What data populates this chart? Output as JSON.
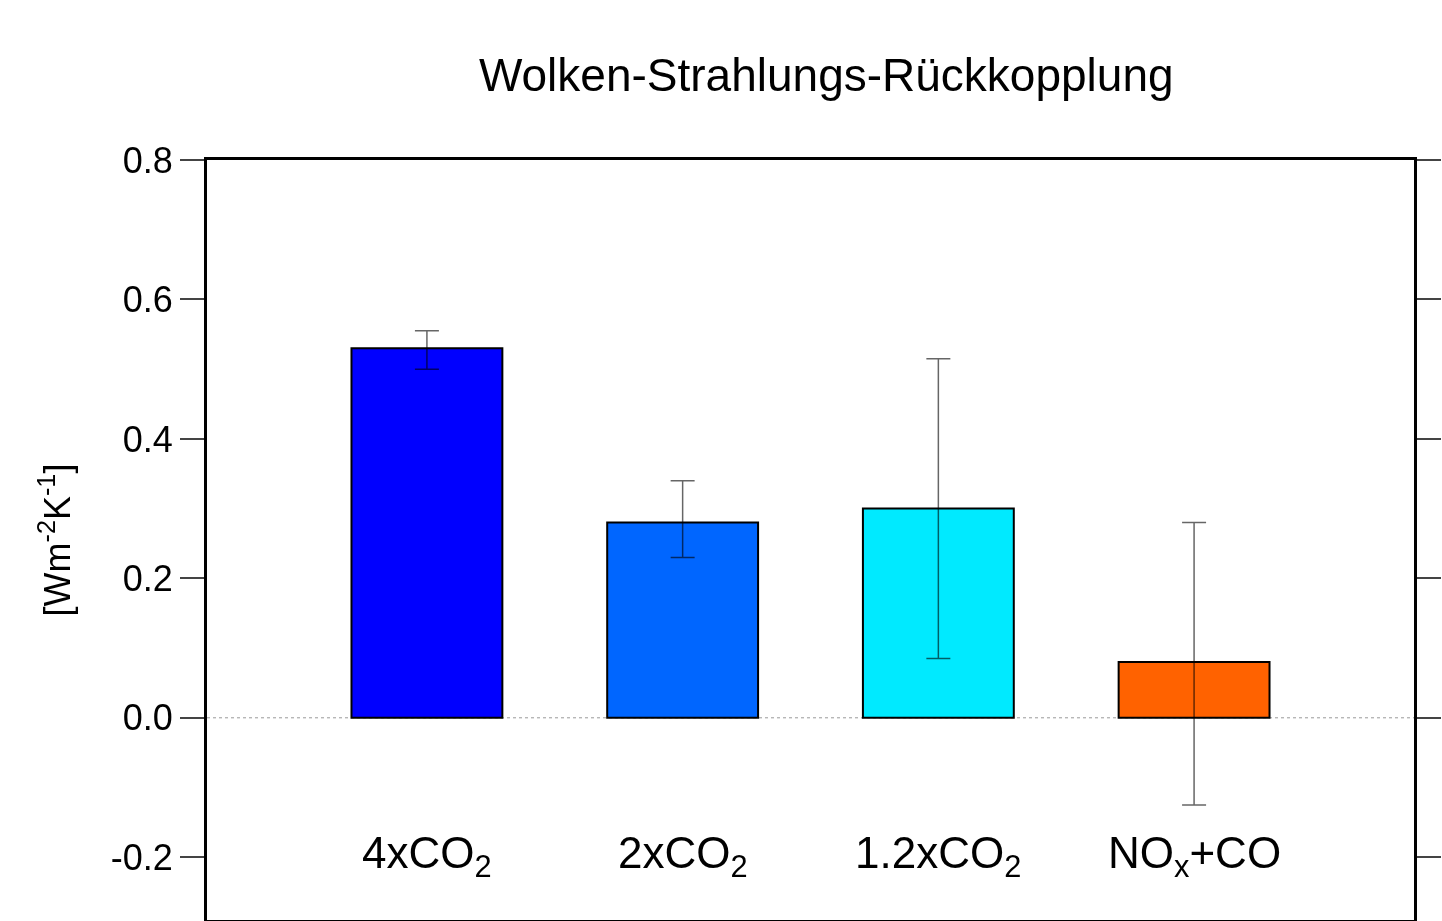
{
  "chart_data": {
    "type": "bar",
    "title": "Wolken-Strahlungs-Rückkopplung",
    "ylabel": "[Wm$^{-2}$K$^{-1}$]",
    "categories": [
      "4xCO$_{2}$",
      "2xCO$_{2}$",
      "1.2xCO$_{2}$",
      "NO$_{x}$+CO"
    ],
    "values": [
      0.53,
      0.28,
      0.3,
      0.08
    ],
    "colors": [
      "#0000ff",
      "#0066ff",
      "#00eaff",
      "#ff6200"
    ],
    "errors": [
      [
        0.5,
        0.555
      ],
      [
        0.23,
        0.34
      ],
      [
        0.085,
        0.515
      ],
      [
        -0.125,
        0.28
      ]
    ],
    "ylim": [
      -0.29,
      0.8
    ],
    "yticks": [
      {
        "value": -0.2,
        "label": "-0.2"
      },
      {
        "value": 0.0,
        "label": "0.0"
      },
      {
        "value": 0.2,
        "label": "0.2"
      },
      {
        "value": 0.4,
        "label": "0.4"
      },
      {
        "value": 0.6,
        "label": "0.6"
      },
      {
        "value": 0.8,
        "label": "0.8"
      }
    ],
    "ref_lines": [
      {
        "axis": "y",
        "value": 0.0,
        "color": "#999999",
        "line_style": "dotted"
      }
    ],
    "grid": false
  }
}
